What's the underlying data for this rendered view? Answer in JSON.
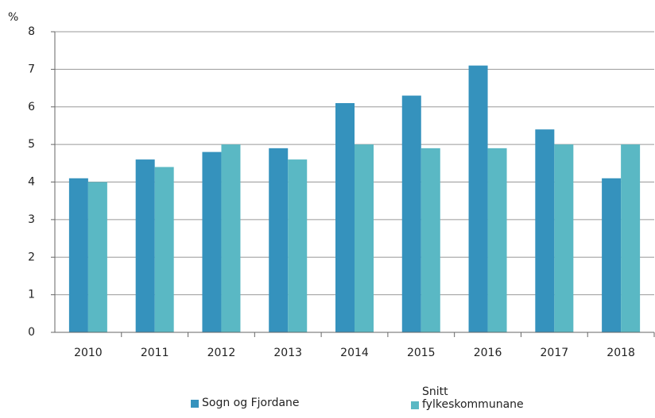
{
  "chart_data": {
    "type": "bar",
    "y_label": "%",
    "categories": [
      "2010",
      "2011",
      "2012",
      "2013",
      "2014",
      "2015",
      "2016",
      "2017",
      "2018"
    ],
    "series": [
      {
        "name": "Sogn og Fjordane",
        "color": "#3592bd",
        "values": [
          4.1,
          4.6,
          4.8,
          4.9,
          6.1,
          6.3,
          7.1,
          5.4,
          4.1
        ]
      },
      {
        "name": "Snitt fylkeskommunane",
        "color": "#5ab8c4",
        "values": [
          4.0,
          4.4,
          5.0,
          4.6,
          5.0,
          4.9,
          4.9,
          5.0,
          5.0
        ]
      }
    ],
    "ylim": [
      0,
      8
    ],
    "yticks": [
      0,
      1,
      2,
      3,
      4,
      5,
      6,
      7,
      8
    ],
    "grid": true
  }
}
